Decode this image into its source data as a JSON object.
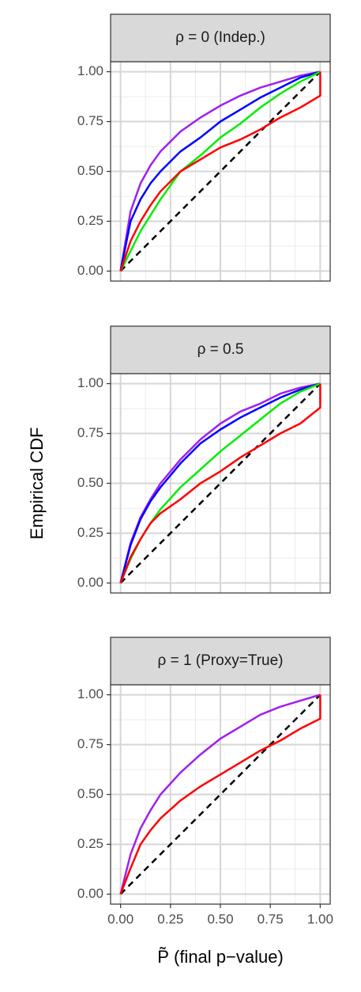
{
  "chart_data": [
    {
      "type": "line",
      "title": "ρ = 0 (Indep.)",
      "xlim": [
        -0.05,
        1.05
      ],
      "ylim": [
        -0.05,
        1.05
      ],
      "grid": true,
      "xticks": [
        0,
        0.25,
        0.5,
        0.75,
        1
      ],
      "yticks": [
        {
          "value": 0,
          "label": "0.00"
        },
        {
          "value": 0.25,
          "label": "0.25"
        },
        {
          "value": 0.5,
          "label": "0.50"
        },
        {
          "value": 0.75,
          "label": "0.75"
        },
        {
          "value": 1,
          "label": "1.00"
        }
      ],
      "series": [
        {
          "color": "#000000",
          "dash": true,
          "x": [
            0,
            1
          ],
          "values": [
            0,
            1
          ]
        },
        {
          "color": "#a020f0",
          "x": [
            0,
            0.05,
            0.1,
            0.15,
            0.2,
            0.3,
            0.4,
            0.5,
            0.6,
            0.7,
            0.8,
            0.9,
            1
          ],
          "values": [
            0,
            0.3,
            0.44,
            0.53,
            0.6,
            0.7,
            0.77,
            0.83,
            0.88,
            0.92,
            0.95,
            0.98,
            1
          ]
        },
        {
          "color": "#0000ff",
          "x": [
            0,
            0.05,
            0.1,
            0.15,
            0.2,
            0.3,
            0.4,
            0.5,
            0.6,
            0.7,
            0.8,
            0.9,
            1
          ],
          "values": [
            0,
            0.25,
            0.36,
            0.44,
            0.5,
            0.6,
            0.67,
            0.75,
            0.81,
            0.87,
            0.92,
            0.97,
            1
          ]
        },
        {
          "color": "#00ee00",
          "x": [
            0,
            0.05,
            0.1,
            0.15,
            0.2,
            0.3,
            0.4,
            0.5,
            0.6,
            0.7,
            0.8,
            0.9,
            1
          ],
          "values": [
            0,
            0.1,
            0.2,
            0.28,
            0.36,
            0.5,
            0.58,
            0.67,
            0.74,
            0.82,
            0.89,
            0.95,
            1
          ]
        },
        {
          "color": "#ff0000",
          "x": [
            0,
            0.05,
            0.1,
            0.15,
            0.2,
            0.3,
            0.4,
            0.5,
            0.6,
            0.7,
            0.8,
            0.9,
            1,
            1
          ],
          "values": [
            0,
            0.15,
            0.25,
            0.33,
            0.4,
            0.5,
            0.56,
            0.62,
            0.66,
            0.71,
            0.77,
            0.82,
            0.88,
            1
          ]
        }
      ]
    },
    {
      "type": "line",
      "title": "ρ = 0.5",
      "ylabel": "Empirical CDF",
      "xlim": [
        -0.05,
        1.05
      ],
      "ylim": [
        -0.05,
        1.05
      ],
      "grid": true,
      "xticks": [
        0,
        0.25,
        0.5,
        0.75,
        1
      ],
      "yticks": [
        {
          "value": 0,
          "label": "0.00"
        },
        {
          "value": 0.25,
          "label": "0.25"
        },
        {
          "value": 0.5,
          "label": "0.50"
        },
        {
          "value": 0.75,
          "label": "0.75"
        },
        {
          "value": 1,
          "label": "1.00"
        }
      ],
      "series": [
        {
          "color": "#000000",
          "dash": true,
          "x": [
            0,
            1
          ],
          "values": [
            0,
            1
          ]
        },
        {
          "color": "#a020f0",
          "x": [
            0,
            0.05,
            0.1,
            0.15,
            0.2,
            0.3,
            0.4,
            0.5,
            0.6,
            0.7,
            0.8,
            0.9,
            1
          ],
          "values": [
            0,
            0.2,
            0.33,
            0.42,
            0.5,
            0.62,
            0.72,
            0.8,
            0.86,
            0.9,
            0.95,
            0.98,
            1
          ]
        },
        {
          "color": "#0000ff",
          "x": [
            0,
            0.05,
            0.1,
            0.15,
            0.2,
            0.3,
            0.4,
            0.5,
            0.6,
            0.7,
            0.8,
            0.9,
            1
          ],
          "values": [
            0,
            0.19,
            0.32,
            0.41,
            0.48,
            0.6,
            0.7,
            0.77,
            0.83,
            0.88,
            0.93,
            0.97,
            1
          ]
        },
        {
          "color": "#00ee00",
          "x": [
            0,
            0.05,
            0.1,
            0.15,
            0.2,
            0.3,
            0.4,
            0.5,
            0.6,
            0.7,
            0.8,
            0.9,
            1
          ],
          "values": [
            0,
            0.12,
            0.22,
            0.3,
            0.37,
            0.48,
            0.57,
            0.66,
            0.74,
            0.82,
            0.9,
            0.96,
            1
          ]
        },
        {
          "color": "#ff0000",
          "x": [
            0,
            0.05,
            0.1,
            0.15,
            0.2,
            0.3,
            0.4,
            0.5,
            0.6,
            0.7,
            0.8,
            0.9,
            1,
            1
          ],
          "values": [
            0,
            0.13,
            0.22,
            0.3,
            0.35,
            0.42,
            0.5,
            0.56,
            0.63,
            0.69,
            0.75,
            0.8,
            0.88,
            1
          ]
        }
      ]
    },
    {
      "type": "line",
      "title": "ρ = 1 (Proxy=True)",
      "xlabel": "P̃ (final p−value)",
      "xlim": [
        -0.05,
        1.05
      ],
      "ylim": [
        -0.05,
        1.05
      ],
      "grid": true,
      "xticks": [
        {
          "value": 0,
          "label": "0.00"
        },
        {
          "value": 0.25,
          "label": "0.25"
        },
        {
          "value": 0.5,
          "label": "0.50"
        },
        {
          "value": 0.75,
          "label": "0.75"
        },
        {
          "value": 1,
          "label": "1.00"
        }
      ],
      "yticks": [
        {
          "value": 0,
          "label": "0.00"
        },
        {
          "value": 0.25,
          "label": "0.25"
        },
        {
          "value": 0.5,
          "label": "0.50"
        },
        {
          "value": 0.75,
          "label": "0.75"
        },
        {
          "value": 1,
          "label": "1.00"
        }
      ],
      "series": [
        {
          "color": "#000000",
          "dash": true,
          "x": [
            0,
            1
          ],
          "values": [
            0,
            1
          ]
        },
        {
          "color": "#a020f0",
          "x": [
            0,
            0.05,
            0.1,
            0.15,
            0.2,
            0.3,
            0.4,
            0.5,
            0.6,
            0.7,
            0.8,
            0.9,
            1
          ],
          "values": [
            0,
            0.2,
            0.33,
            0.42,
            0.5,
            0.61,
            0.7,
            0.78,
            0.84,
            0.9,
            0.94,
            0.97,
            1
          ]
        },
        {
          "color": "#ff0000",
          "x": [
            0,
            0.05,
            0.1,
            0.15,
            0.2,
            0.3,
            0.4,
            0.5,
            0.6,
            0.7,
            0.8,
            0.9,
            1,
            1
          ],
          "values": [
            0,
            0.13,
            0.25,
            0.32,
            0.38,
            0.47,
            0.54,
            0.6,
            0.66,
            0.72,
            0.77,
            0.83,
            0.88,
            1
          ]
        }
      ]
    }
  ]
}
